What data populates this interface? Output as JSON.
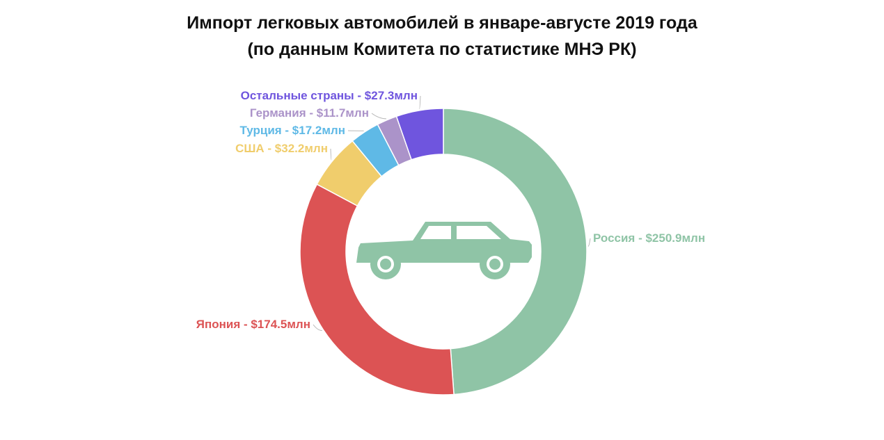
{
  "title": "Импорт легковых автомобилей в январе-августе 2019 года",
  "subtitle": "(по данным Комитета по статистике МНЭ РК)",
  "center_icon": "car-icon",
  "chart_data": {
    "type": "pie",
    "donut": true,
    "title": "Импорт легковых автомобилей в январе-августе 2019 года",
    "subtitle": "(по данным Комитета по статистике МНЭ РК)",
    "unit": "млн USD",
    "slices": [
      {
        "name": "Россия",
        "value": 250.9,
        "label": "Россия - $250.9млн",
        "color": "#8fc4a6"
      },
      {
        "name": "Япония",
        "value": 174.5,
        "label": "Япония - $174.5млн",
        "color": "#dc5354"
      },
      {
        "name": "США",
        "value": 32.2,
        "label": "США - $32.2млн",
        "color": "#f0cd6c"
      },
      {
        "name": "Турция",
        "value": 17.2,
        "label": "Турция - $17.2млн",
        "color": "#5fb9e6"
      },
      {
        "name": "Германия",
        "value": 11.7,
        "label": "Германия - $11.7млн",
        "color": "#ab93c9"
      },
      {
        "name": "Остальные страны",
        "value": 27.3,
        "label": "Остальные страны - $27.3млн",
        "color": "#6f55de"
      }
    ]
  }
}
